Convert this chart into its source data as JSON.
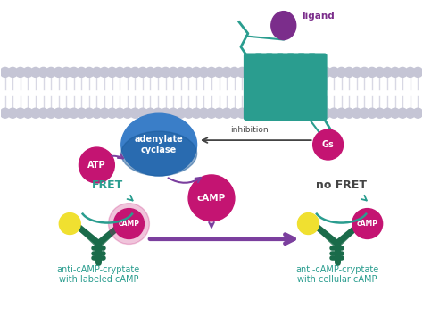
{
  "bg_color": "#ffffff",
  "membrane_head_color": "#c5c5d5",
  "membrane_tail_color": "#d8d8e4",
  "receptor_color": "#2a9d8f",
  "ligand_color": "#7b2d8b",
  "gs_color": "#c41472",
  "adenylate_color": "#3a7ec8",
  "camp_color": "#c41472",
  "atp_color": "#c41472",
  "antibody_color": "#1a6b4a",
  "yellow_dot_color": "#f0e030",
  "arrow_purple": "#7b3f9e",
  "arrow_teal": "#2a9d8f",
  "fret_color": "#2a9d8f",
  "label_color": "#2a9d8f",
  "dark_text": "#444444",
  "white": "#ffffff",
  "camp_text": "cAMP",
  "atp_text": "ATP",
  "gs_text": "Gs",
  "adenylate_text": "adenylate\ncyclase",
  "ligand_text": "ligand",
  "inhibition_text": "inhibition",
  "fret_text": "FRET",
  "no_fret_text": "no FRET",
  "label1": "anti-cAMP-cryptate\nwith labeled cAMP",
  "label2": "anti-cAMP-cryptate\nwith cellular cAMP"
}
